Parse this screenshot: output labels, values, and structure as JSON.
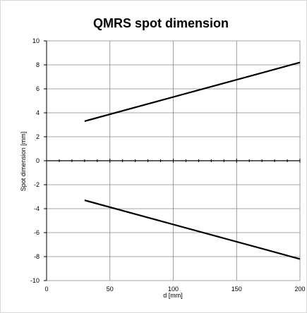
{
  "chart_data": {
    "type": "line",
    "title": "QMRS spot dimension",
    "xlabel": "d [mm]",
    "ylabel": "Spot dimension [mm]",
    "xlim": [
      0,
      200
    ],
    "ylim": [
      -10,
      10
    ],
    "x_ticks": [
      "0",
      "50",
      "100",
      "150",
      "200"
    ],
    "y_ticks": [
      "-10",
      "-8",
      "-6",
      "-4",
      "-2",
      "0",
      "2",
      "4",
      "6",
      "8",
      "10"
    ],
    "grid": true,
    "legend": "none",
    "series": [
      {
        "x": [
          30,
          200
        ],
        "y": [
          3.3,
          8.2
        ],
        "color": "#000000"
      },
      {
        "x": [
          30,
          200
        ],
        "y": [
          -3.3,
          -8.2
        ],
        "color": "#000000"
      }
    ]
  }
}
